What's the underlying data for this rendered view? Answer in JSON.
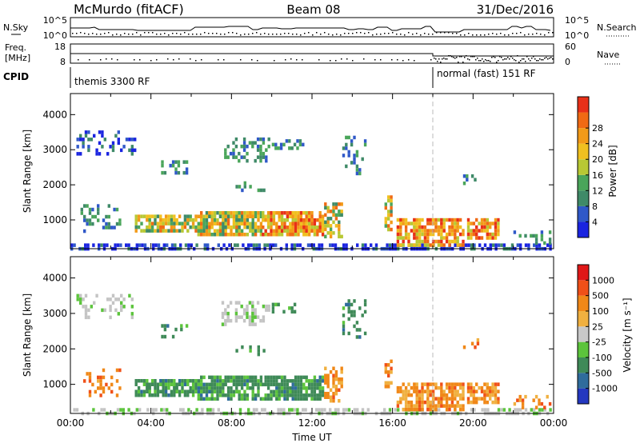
{
  "header": {
    "title": "McMurdo (fitACF)",
    "beam": "Beam 08",
    "date": "31/Dec/2016"
  },
  "panels": {
    "nsky": {
      "left_label": "N.Sky",
      "right_label": "N.Search",
      "left_ticks": [
        "10^5",
        "10^0"
      ],
      "right_ticks": [
        "10^5",
        "10^0"
      ]
    },
    "freq": {
      "left_label_1": "Freq.",
      "left_label_2": "[MHz]",
      "left_ticks": [
        "18",
        "8"
      ],
      "right_label": "Nave",
      "right_ticks": [
        "60",
        "0"
      ]
    },
    "cpid": {
      "label": "CPID",
      "segments": [
        {
          "text": "themis 3300 RF",
          "start_hour": 0
        },
        {
          "text": "normal (fast) 151 RF",
          "start_hour": 18
        }
      ]
    }
  },
  "chart_data": [
    {
      "type": "heatmap",
      "name": "power",
      "ylabel": "Slant Range [km]",
      "yticks": [
        1000,
        2000,
        3000,
        4000
      ],
      "ylim": [
        180,
        4600
      ],
      "xlim": [
        0,
        24
      ],
      "colorbar": {
        "label": "Power [dB]",
        "ticks": [
          "4",
          "8",
          "12",
          "16",
          "20",
          "24",
          "28"
        ],
        "colors": [
          "#1a24e0",
          "#2f58c8",
          "#3f8a68",
          "#4aa55a",
          "#b8c834",
          "#f0c020",
          "#f29a18",
          "#f06a14",
          "#e83018"
        ]
      }
    },
    {
      "type": "heatmap",
      "name": "velocity",
      "ylabel": "Slant Range [km]",
      "yticks": [
        1000,
        2000,
        3000,
        4000
      ],
      "ylim": [
        180,
        4600
      ],
      "xlim": [
        0,
        24
      ],
      "xlabel": "Time UT",
      "xticks": [
        "00:00",
        "04:00",
        "08:00",
        "12:00",
        "16:00",
        "20:00",
        "00:00"
      ],
      "colorbar": {
        "label": "Velocity [m s⁻¹]",
        "ticks": [
          "1000",
          "500",
          "100",
          "25",
          "-25",
          "-100",
          "-500",
          "-1000"
        ],
        "colors": [
          "#2438c0",
          "#2f6c9c",
          "#3f8a58",
          "#5cc43c",
          "#c8c8c8",
          "#f0b040",
          "#f08818",
          "#f05018",
          "#e01818"
        ]
      }
    }
  ],
  "colors": {
    "ground_scatter": "#c4c4c4",
    "frame": "#000000"
  }
}
